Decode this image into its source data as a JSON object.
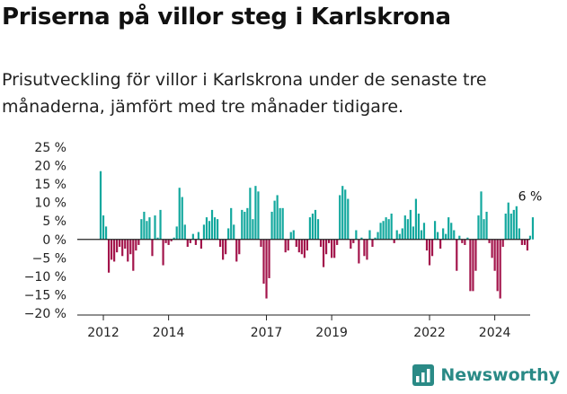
{
  "header": {
    "title": "Priserna på villor steg i Karlskrona",
    "subtitle": "Prisutveckling för villor i Karlskrona under de senaste tre månaderna, jämfört med tre månader tidigare."
  },
  "brand": {
    "name": "Newsworthy"
  },
  "colors": {
    "positive": "#13a89e",
    "negative": "#a3144b",
    "axis": "#222222",
    "brand": "#2a8a86"
  },
  "chart_data": {
    "type": "bar",
    "y_ticks": [
      "25 %",
      "20 %",
      "15 %",
      "10 %",
      "5 %",
      "0 %",
      "−5 %",
      "−10 %",
      "−15 %",
      "−20 %"
    ],
    "ylim": [
      -20,
      25
    ],
    "y_unit": "%",
    "x_ticks": [
      {
        "label": "2012",
        "index": 1
      },
      {
        "label": "2014",
        "index": 25
      },
      {
        "label": "2017",
        "index": 61
      },
      {
        "label": "2019",
        "index": 85
      },
      {
        "label": "2022",
        "index": 121
      },
      {
        "label": "2024",
        "index": 145
      }
    ],
    "annotation": {
      "text": "6 %",
      "index": 158
    },
    "values": [
      18.5,
      6.5,
      3.5,
      -9,
      -5.5,
      -6,
      -3.5,
      -2,
      -4.5,
      -2.5,
      -6,
      -4,
      -8.5,
      -3,
      -1.5,
      5.5,
      7.5,
      5,
      6,
      -4.5,
      6.5,
      0.5,
      8,
      -7,
      -1,
      -1.5,
      -0.5,
      0.5,
      3.5,
      14,
      11.5,
      4,
      -2,
      -1,
      1.5,
      -1.5,
      2,
      -2.5,
      4,
      6,
      5,
      8,
      6,
      5.5,
      -2,
      -5.5,
      -4,
      3,
      8.5,
      4,
      -6,
      -4,
      8,
      7.5,
      8.5,
      14,
      5.5,
      14.5,
      13,
      -2,
      -12,
      -16,
      -10.5,
      7.5,
      10.5,
      12,
      8.5,
      8.5,
      -3.5,
      -3,
      2,
      2.5,
      -2,
      -3.5,
      -4,
      -5,
      -3,
      6,
      7,
      8,
      5.5,
      -2,
      -7.5,
      -4,
      -1,
      -5,
      -5,
      -1.5,
      12,
      14.5,
      13.5,
      11,
      -2.5,
      -1,
      2.5,
      -6.5,
      0.5,
      -4.5,
      -5.5,
      2.5,
      -2,
      0.5,
      2,
      4.5,
      5,
      6,
      5.5,
      7,
      -1,
      2.5,
      1.5,
      3,
      6.5,
      5.5,
      8,
      3.5,
      11,
      7,
      2.5,
      4.5,
      -3,
      -7,
      -4.5,
      5,
      2,
      -2.5,
      3,
      1.5,
      6,
      4.5,
      2.5,
      -8.5,
      1,
      -1,
      -1.5,
      0.5,
      -14,
      -14,
      -8.5,
      6.5,
      13,
      5.5,
      7.5,
      -1,
      -5,
      -8.5,
      -14,
      -16,
      -2,
      7,
      10,
      7,
      8,
      9,
      3,
      -1.5,
      -1.5,
      -3,
      1,
      6
    ]
  }
}
